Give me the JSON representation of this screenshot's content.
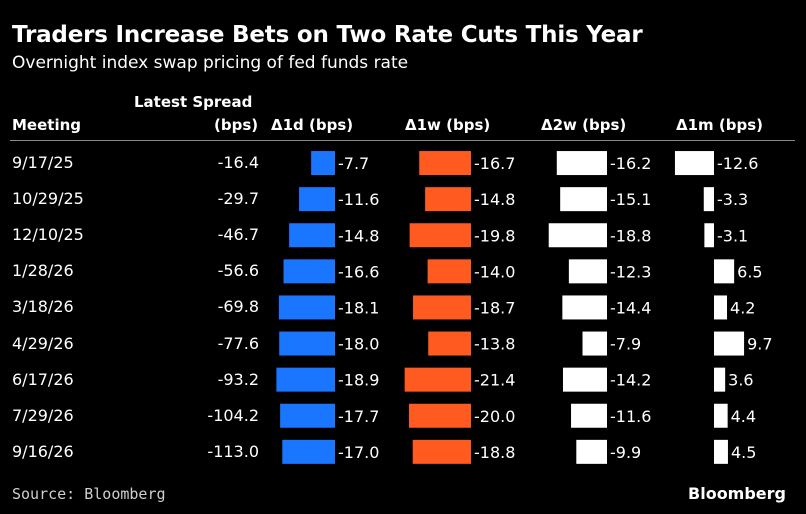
{
  "title": "Traders Increase Bets on Two Rate Cuts This Year",
  "subtitle": "Overnight index swap pricing of fed funds rate",
  "headers": {
    "meeting": "Meeting",
    "spread_line1": "Latest Spread",
    "spread_line2": "(bps)",
    "d1": "Δ1d (bps)",
    "w1": "Δ1w (bps)",
    "w2": "Δ2w (bps)",
    "m1": "Δ1m (bps)"
  },
  "source": "Source: Bloomberg",
  "brand": "Bloomberg",
  "colors": {
    "d1": "#1a75ff",
    "w1": "#ff5a1f",
    "w2": "#ffffff",
    "m1": "#ffffff"
  },
  "chart_data": {
    "type": "table",
    "title": "Traders Increase Bets on Two Rate Cuts This Year",
    "subtitle": "Overnight index swap pricing of fed funds rate",
    "meetings": [
      "9/17/25",
      "10/29/25",
      "12/10/25",
      "1/28/26",
      "3/18/26",
      "4/29/26",
      "6/17/26",
      "7/29/26",
      "9/16/26"
    ],
    "latest_spread": [
      "-16.4",
      "-29.7",
      "-46.7",
      "-56.6",
      "-69.8",
      "-77.6",
      "-93.2",
      "-104.2",
      "-113.0"
    ],
    "series": [
      {
        "key": "d1",
        "name": "Δ1d (bps)",
        "values": [
          -7.7,
          -11.6,
          -14.8,
          -16.6,
          -18.1,
          -18.0,
          -18.9,
          -17.7,
          -17.0
        ],
        "labels": [
          "-7.7",
          "-11.6",
          "-14.8",
          "-16.6",
          "-18.1",
          "-18.0",
          "-18.9",
          "-17.7",
          "-17.0"
        ]
      },
      {
        "key": "w1",
        "name": "Δ1w (bps)",
        "values": [
          -16.7,
          -14.8,
          -19.8,
          -14.0,
          -18.7,
          -13.8,
          -21.4,
          -20.0,
          -18.8
        ],
        "labels": [
          "-16.7",
          "-14.8",
          "-19.8",
          "-14.0",
          "-18.7",
          "-13.8",
          "-21.4",
          "-20.0",
          "-18.8"
        ]
      },
      {
        "key": "w2",
        "name": "Δ2w (bps)",
        "values": [
          -16.2,
          -15.1,
          -18.8,
          -12.3,
          -14.4,
          -7.9,
          -14.2,
          -11.6,
          -9.9
        ],
        "labels": [
          "-16.2",
          "-15.1",
          "-18.8",
          "-12.3",
          "-14.4",
          "-7.9",
          "-14.2",
          "-11.6",
          "-9.9"
        ]
      },
      {
        "key": "m1",
        "name": "Δ1m (bps)",
        "values": [
          -12.6,
          -3.3,
          -3.1,
          6.5,
          4.2,
          9.7,
          3.6,
          4.4,
          4.5
        ],
        "labels": [
          "-12.6",
          "-3.3",
          "-3.1",
          "6.5",
          "4.2",
          "9.7",
          "3.6",
          "4.4",
          "4.5"
        ]
      }
    ]
  }
}
